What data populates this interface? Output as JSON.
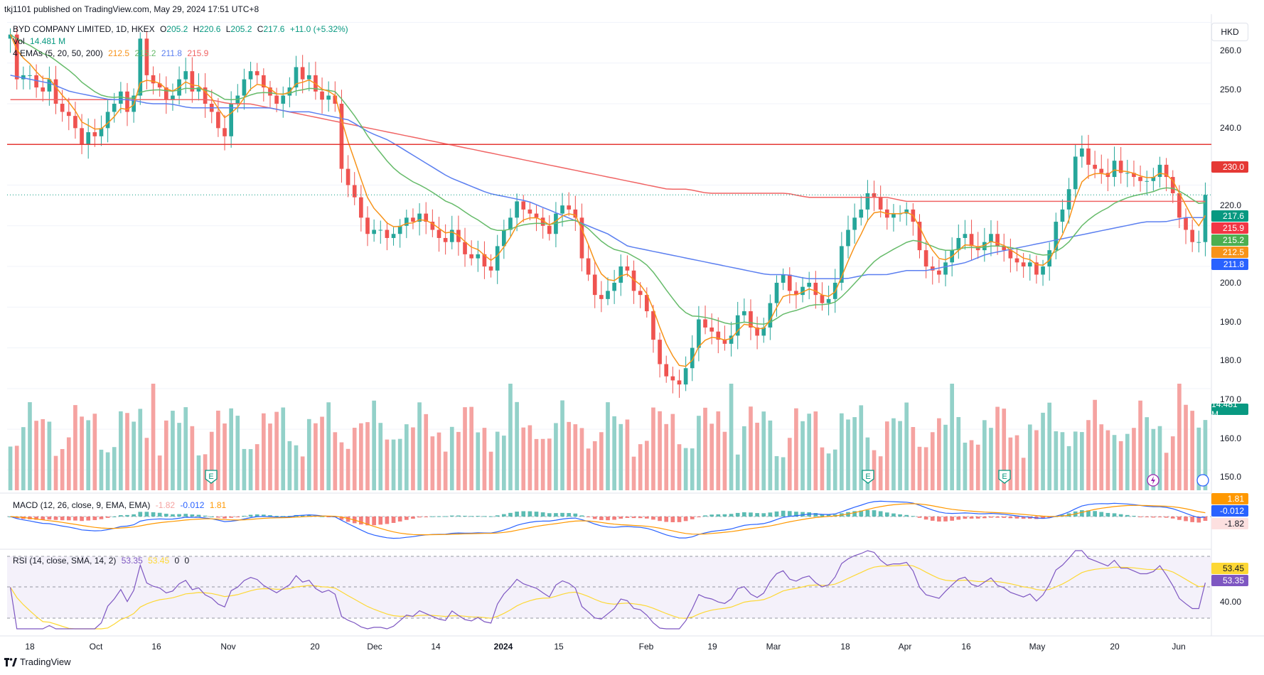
{
  "header": {
    "published": "tkj1101 published on TradingView.com, May 29, 2024 17:51 UTC+8"
  },
  "legend": {
    "symbol": "BYD COMPANY LIMITED, 1D, HKEX",
    "o_label": "O",
    "o_value": "205.2",
    "h_label": "H",
    "h_value": "220.6",
    "l_label": "L",
    "l_value": "205.2",
    "c_label": "C",
    "c_value": "217.6",
    "change": "+11.0 (+5.32%)",
    "vol_label": "Vol",
    "vol_value": "14.481 M",
    "ema_label": "4 EMAs (5, 20, 50, 200)",
    "ema_values": [
      "212.5",
      "215.2",
      "211.8",
      "215.9"
    ],
    "macd_label": "MACD (12, 26, close, 9, EMA, EMA)",
    "macd_values": [
      "-1.82",
      "-0.012",
      "1.81"
    ],
    "rsi_label": "RSI (14, close, SMA, 14, 2)",
    "rsi_values": [
      "53.35",
      "53.45",
      "0",
      "0"
    ]
  },
  "currency": "HKD",
  "price_tags": {
    "resistance": "230.0",
    "close": "217.6",
    "ema200": "215.9",
    "ema20": "215.2",
    "ema5": "212.5",
    "ema50": "211.8",
    "volume": "14.481 M",
    "macd_hist": "1.81",
    "macd_line": "-0.012",
    "macd_signal": "-1.82",
    "rsi_sma": "53.45",
    "rsi": "53.35"
  },
  "y_axis_price": [
    "260.0",
    "250.0",
    "240.0",
    "230.0",
    "220.0",
    "210.0",
    "200.0",
    "190.0",
    "180.0",
    "170.0",
    "160.0",
    "150.0"
  ],
  "y_axis_rsi": [
    "40.00"
  ],
  "x_axis": [
    "18",
    "Oct",
    "16",
    "Nov",
    "20",
    "Dec",
    "14",
    "2024",
    "15",
    "Feb",
    "19",
    "Mar",
    "18",
    "Apr",
    "16",
    "May",
    "20",
    "Jun"
  ],
  "event_marker": "E",
  "footer": {
    "brand": "TradingView"
  },
  "colors": {
    "up": "#26a69a",
    "down": "#ef5350",
    "vol_up": "#93d1c9",
    "vol_down": "#f5a3a1",
    "ema5": "#f7931a",
    "ema20": "#66bb6a",
    "ema50": "#5b7ff0",
    "ema200": "#f06464",
    "resistance": "#e53935",
    "macd": "#2962ff",
    "signal": "#ff9800",
    "rsi": "#7e57c2",
    "rsi_ma": "#fdd835"
  },
  "chart_data": {
    "type": "candlestick",
    "symbol": "BYD COMPANY LIMITED",
    "timeframe": "1D",
    "exchange": "HKEX",
    "last_bar": {
      "open": 205.2,
      "high": 220.6,
      "low": 205.2,
      "close": 217.6,
      "change": 11.0,
      "change_pct": 5.32,
      "volume": "14.481 M"
    },
    "ylim": [
      145,
      262
    ],
    "resistance_level": 230.0,
    "approx_closes_daily": [
      257,
      246,
      247,
      247,
      244,
      243,
      246,
      240,
      238,
      237,
      234,
      230,
      233,
      232,
      234,
      238,
      240,
      243,
      238,
      242,
      256,
      247,
      245,
      244,
      241,
      242,
      246,
      248,
      243,
      244,
      240,
      238,
      234,
      232,
      240,
      242,
      246,
      248,
      247,
      244,
      242,
      240,
      242,
      244,
      249,
      246,
      247,
      243,
      241,
      242,
      240,
      224,
      220,
      217,
      212,
      208,
      209,
      209,
      207,
      208,
      210,
      212,
      211,
      213,
      211,
      209,
      207,
      206,
      209,
      206,
      203,
      202,
      203,
      200,
      199,
      205,
      209,
      212,
      216,
      214,
      213,
      212,
      210,
      208,
      213,
      215,
      214,
      212,
      202,
      198,
      193,
      192,
      194,
      196,
      200,
      199,
      194,
      193,
      189,
      182,
      176,
      173,
      172,
      171,
      175,
      180,
      187,
      185,
      184,
      182,
      181,
      183,
      188,
      189,
      185,
      183,
      185,
      191,
      196,
      198,
      194,
      193,
      195,
      196,
      193,
      191,
      192,
      196,
      205,
      209,
      212,
      214,
      218,
      217,
      214,
      212,
      213,
      213,
      214,
      211,
      204,
      200,
      199,
      198,
      201,
      204,
      207,
      208,
      205,
      204,
      206,
      208,
      205,
      204,
      202,
      201,
      200,
      201,
      198,
      200,
      204,
      211,
      214,
      219,
      227,
      229,
      225,
      224,
      223,
      222,
      226,
      223,
      223,
      222,
      221,
      221,
      222,
      225,
      222,
      218,
      212,
      209,
      206,
      206,
      217.6
    ],
    "ema": {
      "names": [
        "EMA 5",
        "EMA 20",
        "EMA 50",
        "EMA 200"
      ],
      "last": [
        212.5,
        215.2,
        211.8,
        215.9
      ],
      "ema50_path": [
        247,
        246,
        245,
        243,
        242,
        241,
        241,
        240,
        240,
        239,
        239,
        239,
        239,
        239,
        238,
        238,
        237,
        236,
        233,
        231,
        228,
        225,
        222,
        220,
        218,
        217,
        216,
        214,
        212,
        210,
        208,
        205,
        204,
        203,
        202,
        201,
        200,
        199,
        198,
        198,
        197,
        197,
        197,
        198,
        198,
        199,
        199,
        200,
        201,
        203,
        204,
        205,
        206,
        207,
        208,
        209,
        210,
        211,
        211,
        212,
        212
      ],
      "ema200_path": [
        241,
        241,
        241,
        241,
        241,
        241,
        241,
        241,
        241,
        241,
        241,
        240,
        240,
        239,
        238,
        237,
        236,
        235,
        234,
        233,
        232,
        231,
        230,
        229,
        228,
        227,
        226,
        225,
        224,
        223,
        222,
        221,
        220,
        219,
        219,
        218,
        218,
        218,
        218,
        218,
        217,
        217,
        217,
        217,
        217,
        216,
        216,
        216,
        216,
        216,
        216,
        216,
        216,
        216,
        216,
        216,
        216,
        216,
        216,
        216,
        216
      ]
    },
    "volume_last": "14.481 M",
    "macd": {
      "hist": 1.81,
      "macd": -0.012,
      "signal": -1.82
    },
    "rsi": {
      "value": 53.35,
      "sma": 53.45
    },
    "x_tick_labels": [
      "18",
      "Oct",
      "16",
      "Nov",
      "20",
      "Dec",
      "14",
      "2024",
      "15",
      "Feb",
      "19",
      "Mar",
      "18",
      "Apr",
      "16",
      "May",
      "20",
      "Jun"
    ],
    "y_tick_labels": [
      260,
      250,
      240,
      230,
      220,
      210,
      200,
      190,
      180,
      170,
      160,
      150
    ]
  }
}
